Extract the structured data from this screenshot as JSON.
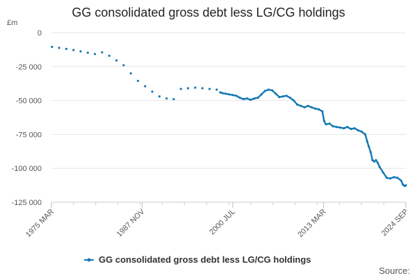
{
  "chart_data": {
    "type": "line",
    "title": "GG consolidated gross debt less LG/CG holdings",
    "ylabel": "£m",
    "xlabel": "",
    "ylim": [
      -125000,
      0
    ],
    "xlim": [
      1975.17,
      2024.67
    ],
    "grid": true,
    "legend_position": "bottom",
    "source": "Source:",
    "y_ticks": [
      {
        "value": 0,
        "label": "0"
      },
      {
        "value": -25000,
        "label": "-25 000"
      },
      {
        "value": -50000,
        "label": "-50 000"
      },
      {
        "value": -75000,
        "label": "-75 000"
      },
      {
        "value": -100000,
        "label": "-100 000"
      },
      {
        "value": -125000,
        "label": "-125 000"
      }
    ],
    "x_ticks": [
      {
        "value": 1975.17,
        "label": "1975 MAR"
      },
      {
        "value": 1987.83,
        "label": "1987 NOV"
      },
      {
        "value": 2000.5,
        "label": "2000 JUL"
      },
      {
        "value": 2013.17,
        "label": "2013 MAR"
      },
      {
        "value": 2024.67,
        "label": "2024 SEP"
      }
    ],
    "color": "#1478b4",
    "series": [
      {
        "name": "GG consolidated gross debt less LG/CG holdings",
        "style": "dots",
        "x": [
          1975.25,
          1976.25,
          1977.25,
          1978.25,
          1979.25,
          1980.25,
          1981.25,
          1982.25,
          1983.25,
          1984.25,
          1985.25,
          1986.25,
          1987.25,
          1988.25,
          1989.25,
          1990.25,
          1991.25,
          1992.25,
          1993.25,
          1994.25,
          1995.25,
          1996.25,
          1997.25,
          1998.25
        ],
        "values": [
          -10500,
          -11200,
          -12000,
          -12800,
          -13800,
          -14800,
          -15800,
          -14500,
          -17000,
          -20500,
          -24000,
          -30000,
          -35500,
          -39500,
          -43500,
          -47000,
          -48500,
          -49000,
          -41500,
          -41000,
          -40500,
          -41000,
          -41500,
          -42000
        ]
      },
      {
        "name": "GG consolidated gross debt less LG/CG holdings",
        "style": "line",
        "x": [
          1998.75,
          1999.0,
          1999.5,
          2000.0,
          2000.5,
          2001.0,
          2001.5,
          2002.0,
          2002.5,
          2003.0,
          2003.5,
          2004.0,
          2004.5,
          2005.0,
          2005.5,
          2006.0,
          2006.5,
          2007.0,
          2007.5,
          2008.0,
          2008.5,
          2009.0,
          2009.5,
          2010.0,
          2010.5,
          2011.0,
          2011.5,
          2012.0,
          2012.5,
          2013.0,
          2013.25,
          2013.5,
          2014.0,
          2014.5,
          2015.0,
          2015.5,
          2016.0,
          2016.5,
          2017.0,
          2017.5,
          2018.0,
          2018.5,
          2019.0,
          2019.25,
          2019.5,
          2019.75,
          2020.0,
          2020.25,
          2020.5,
          2020.75,
          2021.0,
          2021.5,
          2022.0,
          2022.5,
          2023.0,
          2023.5,
          2024.0,
          2024.25,
          2024.5,
          2024.67
        ],
        "values": [
          -44000,
          -44500,
          -45000,
          -45500,
          -46000,
          -46500,
          -48000,
          -49000,
          -48500,
          -49500,
          -48500,
          -48000,
          -45500,
          -43000,
          -42000,
          -42500,
          -45000,
          -47500,
          -47000,
          -46500,
          -48000,
          -50000,
          -53000,
          -54000,
          -55000,
          -54000,
          -55000,
          -56000,
          -56500,
          -58000,
          -65000,
          -67500,
          -67000,
          -69000,
          -69500,
          -70000,
          -70500,
          -69500,
          -71000,
          -70500,
          -72000,
          -73000,
          -75000,
          -80000,
          -84000,
          -88000,
          -94000,
          -95000,
          -94000,
          -96000,
          -99000,
          -103000,
          -107000,
          -107500,
          -106500,
          -107000,
          -109000,
          -112000,
          -113000,
          -112500
        ]
      }
    ]
  }
}
